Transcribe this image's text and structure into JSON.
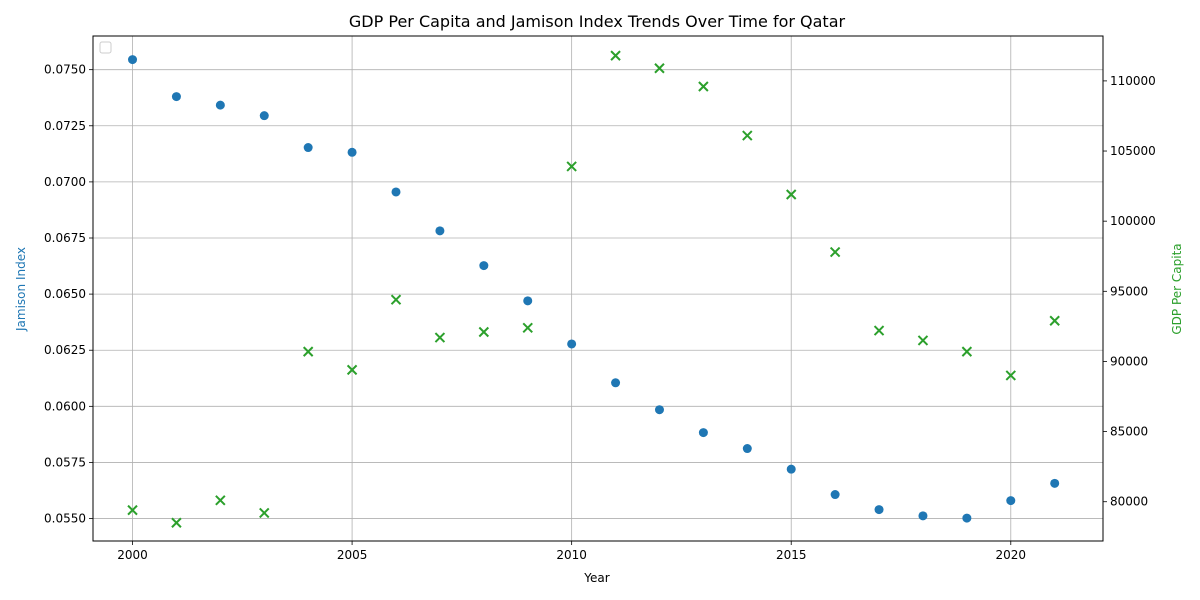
{
  "chart_data": {
    "type": "scatter",
    "title": "GDP Per Capita and Jamison Index Trends Over Time for Qatar",
    "xlabel": "Year",
    "ylabel_left": "Jamison Index",
    "ylabel_right": "GDP Per Capita",
    "x": [
      2000,
      2001,
      2002,
      2003,
      2004,
      2005,
      2006,
      2007,
      2008,
      2009,
      2010,
      2011,
      2012,
      2013,
      2014,
      2015,
      2016,
      2017,
      2018,
      2019,
      2020,
      2021
    ],
    "series": [
      {
        "axis": "left",
        "marker": "circle",
        "color": "#1f77b4",
        "values": [
          0.07545,
          0.0738,
          0.07342,
          0.07295,
          0.07153,
          0.07132,
          0.06955,
          0.06782,
          0.06627,
          0.0647,
          0.06278,
          0.06105,
          0.05985,
          0.05883,
          0.05812,
          0.0572,
          0.05607,
          0.0554,
          0.05512,
          0.05502,
          0.0558,
          0.05657
        ]
      },
      {
        "axis": "right",
        "marker": "x",
        "color": "#2ca02c",
        "values": [
          79400,
          78500,
          80100,
          79200,
          90700,
          89400,
          94400,
          91700,
          92100,
          92400,
          103900,
          111800,
          110900,
          109600,
          106100,
          101900,
          97800,
          92200,
          91500,
          90700,
          89000,
          92900
        ]
      }
    ],
    "xlim": [
      1999.1,
      2022.1
    ],
    "ylim_left": [
      0.054,
      0.0765
    ],
    "ylim_right": [
      77200,
      113200
    ],
    "xticks": [
      2000,
      2005,
      2010,
      2015,
      2020
    ],
    "yticks_left": [
      "0.0550",
      "0.0575",
      "0.0600",
      "0.0625",
      "0.0650",
      "0.0675",
      "0.0700",
      "0.0725",
      "0.0750"
    ],
    "yticks_right": [
      "80000",
      "85000",
      "90000",
      "95000",
      "100000",
      "105000",
      "110000"
    ],
    "grid": true,
    "legend": "top-left, empty"
  }
}
